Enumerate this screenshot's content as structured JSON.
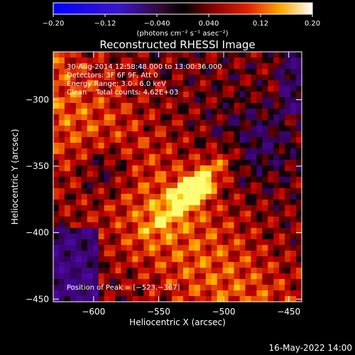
{
  "chart_data": {
    "type": "heatmap",
    "title": "Reconstructed RHESSI Image",
    "xlabel": "Heliocentric X (arcsec)",
    "ylabel": "Heliocentric Y (arcsec)",
    "xlim": [
      -631,
      -440
    ],
    "ylim": [
      -452,
      -264
    ],
    "xticks": [
      -600,
      -550,
      -500,
      -450
    ],
    "xtick_labels": [
      "−600",
      "−550",
      "−500",
      "−450"
    ],
    "yticks": [
      -300,
      -350,
      -400,
      -450
    ],
    "ytick_labels": [
      "−300",
      "−350",
      "−400",
      "−450"
    ],
    "colorbar": {
      "ticks": [
        -0.2,
        -0.12,
        -0.04,
        0.04,
        0.12,
        0.2
      ],
      "tick_labels": [
        "−0.20",
        "−0.12",
        "−0.040",
        "0.040",
        "0.12",
        "0.20"
      ],
      "unit_label": "(photons cm⁻² s⁻¹ asec⁻²)",
      "range": [
        -0.2,
        0.2
      ]
    },
    "annotations": [
      "30-Aug-2014 12:58:48.000 to 13:00:36.000",
      "Detectors: 3F 6F 9F, Att 0",
      "Energy Range: 3.0 - 6.0 keV",
      "Clean    Total counts: 4.62E+03"
    ],
    "peak_label": "Position of Peak = [−523,−367]",
    "peak": {
      "x": -523,
      "y": -367
    },
    "grid": false
  },
  "footer": {
    "date": "16-May-2022 14:00"
  }
}
